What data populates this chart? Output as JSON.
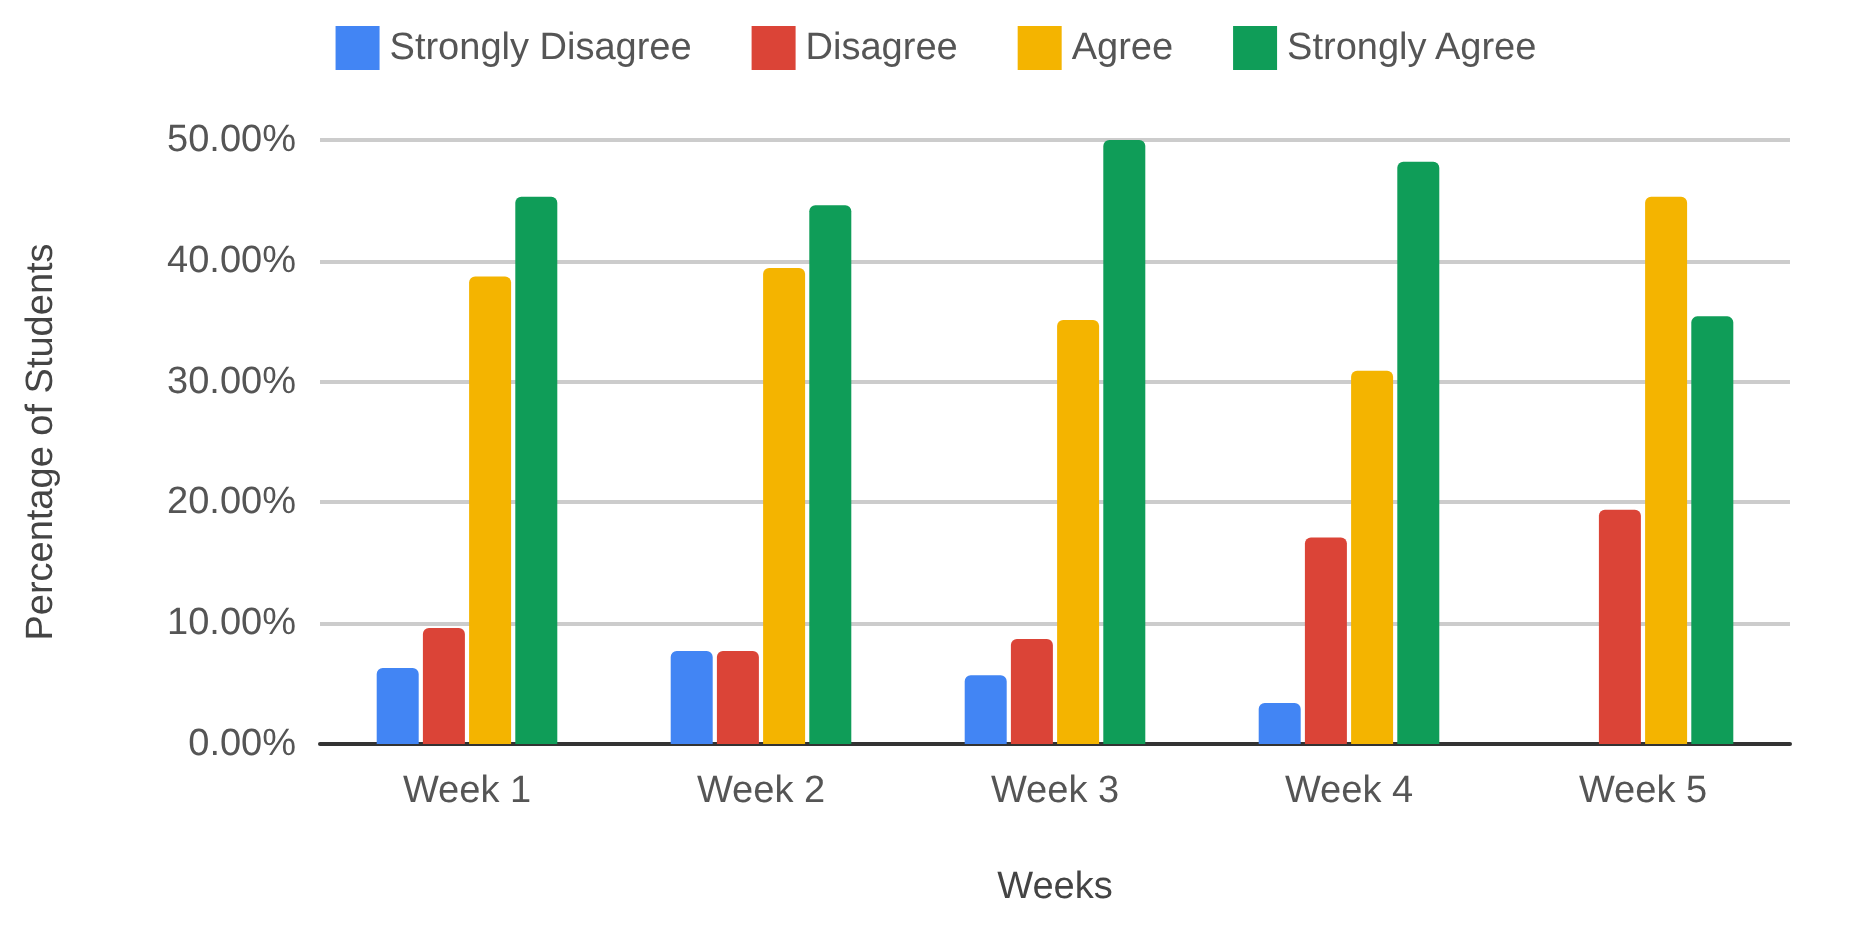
{
  "chart_data": {
    "type": "bar",
    "xlabel": "Weeks",
    "ylabel": "Percentage of Students",
    "categories": [
      "Week 1",
      "Week 2",
      "Week 3",
      "Week 4",
      "Week 5"
    ],
    "series": [
      {
        "name": "Strongly Disagree",
        "color": "#4285f4",
        "values": [
          6.3,
          7.7,
          5.7,
          3.4,
          0
        ]
      },
      {
        "name": "Disagree",
        "color": "#db4437",
        "values": [
          9.6,
          7.7,
          8.7,
          17.1,
          19.4
        ]
      },
      {
        "name": "Agree",
        "color": "#f4b400",
        "values": [
          38.7,
          39.4,
          35.1,
          30.9,
          45.3
        ]
      },
      {
        "name": "Strongly Agree",
        "color": "#0f9d58",
        "values": [
          45.3,
          44.6,
          50.0,
          48.2,
          35.4
        ]
      }
    ],
    "ylim": [
      0,
      50
    ],
    "yticks": [
      {
        "value": 0,
        "label": "0.00%"
      },
      {
        "value": 10,
        "label": "10.00%"
      },
      {
        "value": 20,
        "label": "20.00%"
      },
      {
        "value": 30,
        "label": "30.00%"
      },
      {
        "value": 40,
        "label": "40.00%"
      },
      {
        "value": 50,
        "label": "50.00%"
      }
    ],
    "grid": "y",
    "legend": "top"
  }
}
